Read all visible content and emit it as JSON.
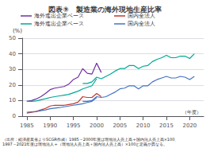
{
  "chart_data": {
    "type": "line",
    "title": "図表⑨　製造業の海外現地生産比率",
    "xlabel": "（年度）",
    "ylabel": "(%)",
    "annotations": [
      "（出所：経済産業省よりSCGR作成）1985～2000年度は現地法人売上高÷国内法人売上高×100、",
      "1997～2021年度は現地法人÷（現地法人売上高＋国内法人売上高）×100と定義が異なる。"
    ],
    "xlim": [
      1984,
      2023
    ],
    "xticks": [
      1985,
      1990,
      1995,
      2000,
      2005,
      2010,
      2015,
      2020
    ],
    "ylim": [
      0,
      50
    ],
    "yticks": [
      0,
      10,
      20,
      30,
      40,
      50
    ],
    "grid": true,
    "legend": "upper left",
    "series": [
      {
        "name": "海外進出企業ベース",
        "color": "#7030a0",
        "x": [
          1985,
          1986,
          1987,
          1988,
          1989,
          1990,
          1991,
          1992,
          1993,
          1994,
          1995,
          1996,
          1997,
          1998,
          1999,
          2000,
          2001
        ],
        "values": [
          9.5,
          10.0,
          11.0,
          12.5,
          14.5,
          17.0,
          18.0,
          18.5,
          19.0,
          20.5,
          23.5,
          25.0,
          30.5,
          27.5,
          27.0,
          34.0,
          28.0
        ]
      },
      {
        "name": "国内全法人",
        "color": "#c0392b",
        "x": [
          1985,
          1986,
          1987,
          1988,
          1989,
          1990,
          1991,
          1992,
          1993,
          1994,
          1995,
          1996,
          1997,
          1998,
          1999,
          2000,
          2001
        ],
        "values": [
          2.0,
          2.5,
          3.0,
          4.0,
          5.0,
          6.5,
          7.0,
          7.0,
          7.0,
          7.5,
          8.0,
          9.0,
          12.5,
          12.0,
          12.0,
          14.5,
          12.5
        ]
      },
      {
        "name": "海外進出企業ベース",
        "color": "#00a896",
        "x": [
          1985,
          1986,
          1987,
          1988,
          1989,
          1990,
          1991,
          1992,
          1993,
          1994,
          1995,
          1996,
          1997,
          1998,
          1999,
          2000
        ],
        "values": [
          9.5,
          9.5,
          9.8,
          10.5,
          11.2,
          12.0,
          12.5,
          13.0,
          13.5,
          14.0,
          15.0,
          16.0,
          17.5,
          18.5,
          19.5,
          24.0
        ]
      },
      {
        "name": "海外進出企業ベース",
        "color": "#00a896",
        "x": [
          1997,
          1998,
          1999,
          2000,
          2001,
          2002,
          2003,
          2004,
          2005,
          2006,
          2007,
          2008,
          2009,
          2010,
          2011,
          2012,
          2013,
          2014,
          2015,
          2016,
          2017,
          2018,
          2019,
          2020,
          2021
        ],
        "values": [
          21.0,
          21.0,
          22.0,
          25.0,
          24.0,
          25.5,
          27.0,
          29.0,
          30.5,
          30.5,
          32.5,
          32.5,
          30.5,
          32.0,
          32.5,
          35.0,
          36.5,
          37.5,
          39.0,
          37.5,
          37.5,
          38.5,
          38.5,
          37.0,
          40.0
        ]
      },
      {
        "name": "国内全法人",
        "color": "#4472c4",
        "x": [
          1985,
          1986,
          1987,
          1988,
          1989,
          1990,
          1991,
          1992,
          1993,
          1994,
          1995,
          1996,
          1997,
          1998,
          1999,
          2000
        ],
        "values": [
          2.5,
          2.8,
          3.0,
          3.5,
          4.0,
          4.8,
          5.2,
          5.5,
          6.0,
          6.5,
          7.0,
          7.5,
          8.0,
          8.8,
          9.5,
          12.0
        ]
      },
      {
        "name": "国内全法人",
        "color": "#4472c4",
        "x": [
          1997,
          1998,
          1999,
          2000,
          2001,
          2002,
          2003,
          2004,
          2005,
          2006,
          2007,
          2008,
          2009,
          2010,
          2011,
          2012,
          2013,
          2014,
          2015,
          2016,
          2017,
          2018,
          2019,
          2020,
          2021
        ],
        "values": [
          9.5,
          9.5,
          10.0,
          12.5,
          12.0,
          12.5,
          14.0,
          15.5,
          17.5,
          18.0,
          19.5,
          19.5,
          17.5,
          19.5,
          19.5,
          22.0,
          23.5,
          24.5,
          25.5,
          24.5,
          24.5,
          25.5,
          25.0,
          23.5,
          25.5
        ]
      }
    ]
  }
}
